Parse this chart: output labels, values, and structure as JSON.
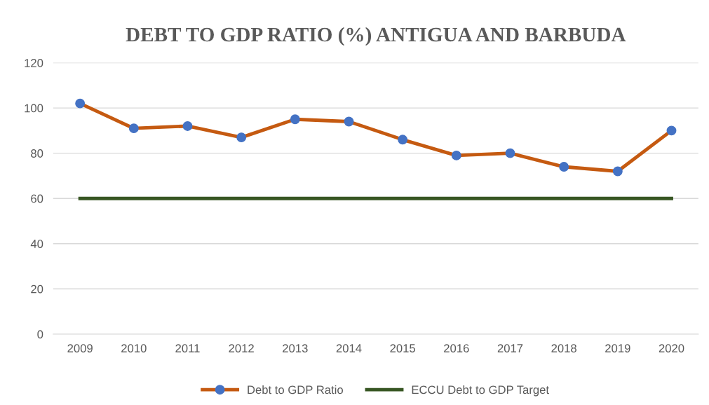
{
  "chart_data": {
    "type": "line",
    "title": "DEBT TO GDP RATIO (%) ANTIGUA AND BARBUDA",
    "categories": [
      "2009",
      "2010",
      "2011",
      "2012",
      "2013",
      "2014",
      "2015",
      "2016",
      "2017",
      "2018",
      "2019",
      "2020"
    ],
    "series": [
      {
        "name": "Debt to GDP Ratio",
        "color": "#c55a11",
        "marker": "circle",
        "values": [
          102,
          91,
          92,
          87,
          95,
          94,
          86,
          79,
          80,
          74,
          72,
          90
        ]
      },
      {
        "name": "ECCU Debt to GDP Target",
        "color": "#375623",
        "marker": "none",
        "values": [
          60,
          60,
          60,
          60,
          60,
          60,
          60,
          60,
          60,
          60,
          60,
          60
        ]
      }
    ],
    "ylim": [
      0,
      120
    ],
    "yticks": [
      0,
      20,
      40,
      60,
      80,
      100,
      120
    ],
    "grid": "y",
    "legend": "bottom",
    "line_style": "solid"
  }
}
